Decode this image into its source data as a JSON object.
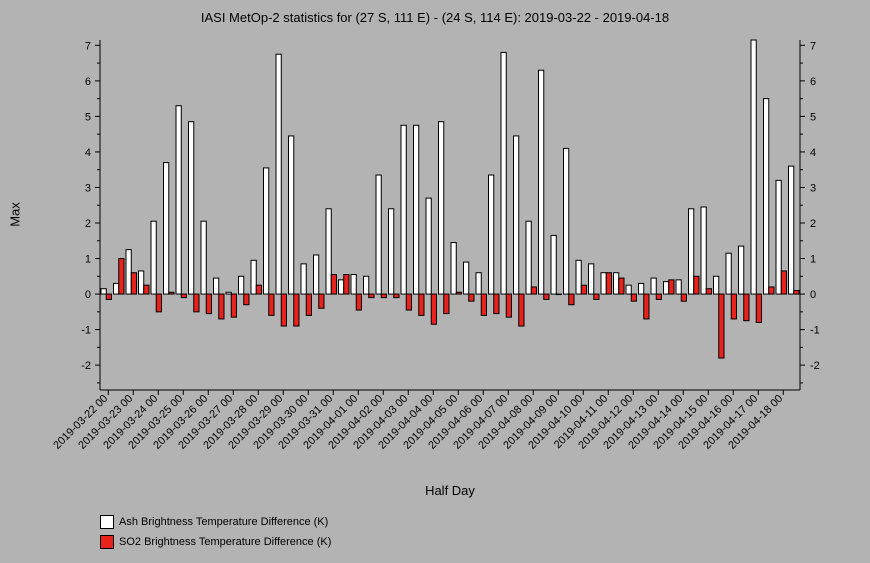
{
  "chart_data": {
    "type": "bar",
    "title": "IASI MetOp-2 statistics for (27 S, 111 E) - (24 S, 114 E): 2019-03-22 - 2019-04-18",
    "xlabel": "Half Day",
    "ylabel": "Max",
    "ylim": [
      -2.7,
      7.15
    ],
    "yticks": [
      -2,
      -1,
      0,
      1,
      2,
      3,
      4,
      5,
      6,
      7
    ],
    "grid": false,
    "legend_position": "bottom-left",
    "x_tick_labels": [
      "2019-03-22 00",
      "2019-03-23 00",
      "2019-03-24 00",
      "2019-03-25 00",
      "2019-03-26 00",
      "2019-03-27 00",
      "2019-03-28 00",
      "2019-03-29 00",
      "2019-03-30 00",
      "2019-03-31 00",
      "2019-04-01 00",
      "2019-04-02 00",
      "2019-04-03 00",
      "2019-04-04 00",
      "2019-04-05 00",
      "2019-04-06 00",
      "2019-04-07 00",
      "2019-04-08 00",
      "2019-04-09 00",
      "2019-04-10 00",
      "2019-04-11 00",
      "2019-04-12 00",
      "2019-04-13 00",
      "2019-04-14 00",
      "2019-04-15 00",
      "2019-04-16 00",
      "2019-04-17 00",
      "2019-04-18 00"
    ],
    "series": [
      {
        "name": "Ash Brightness Temperature Difference (K)",
        "color": "#ffffff",
        "values": [
          0.15,
          0.3,
          1.25,
          0.65,
          2.05,
          3.7,
          5.3,
          4.85,
          2.05,
          0.45,
          0.05,
          0.5,
          0.95,
          3.55,
          6.75,
          4.45,
          0.85,
          1.1,
          2.4,
          0.4,
          0.55,
          0.5,
          3.35,
          2.4,
          4.75,
          4.75,
          2.7,
          4.85,
          1.45,
          0.9,
          0.6,
          3.35,
          6.8,
          4.45,
          2.05,
          6.3,
          1.65,
          4.1,
          0.95,
          0.85,
          0.6,
          0.6,
          0.25,
          0.3,
          0.45,
          0.35,
          0.4,
          2.4,
          2.45,
          0.5,
          1.15,
          1.35,
          7.15,
          5.5,
          3.2,
          3.6
        ]
      },
      {
        "name": "SO2 Brightness Temperature Difference (K)",
        "color": "#e8231e",
        "values": [
          -0.15,
          1.0,
          0.6,
          0.25,
          -0.5,
          0.05,
          -0.1,
          -0.5,
          -0.55,
          -0.7,
          -0.65,
          -0.3,
          0.25,
          -0.6,
          -0.9,
          -0.9,
          -0.6,
          -0.4,
          0.55,
          0.55,
          -0.45,
          -0.1,
          -0.1,
          -0.1,
          -0.45,
          -0.6,
          -0.85,
          -0.55,
          0.05,
          -0.2,
          -0.6,
          -0.55,
          -0.65,
          -0.9,
          0.2,
          -0.15,
          0.0,
          -0.3,
          0.25,
          -0.15,
          0.6,
          0.45,
          -0.2,
          -0.7,
          -0.15,
          0.4,
          -0.2,
          0.5,
          0.15,
          -1.8,
          -0.7,
          -0.75,
          -0.8,
          0.2,
          0.65,
          0.1
        ]
      }
    ]
  },
  "legend": {
    "ash_label": "Ash Brightness Temperature Difference (K)",
    "so2_label": "SO2 Brightness Temperature Difference (K)",
    "ash_color": "#ffffff",
    "so2_color": "#e8231e"
  }
}
